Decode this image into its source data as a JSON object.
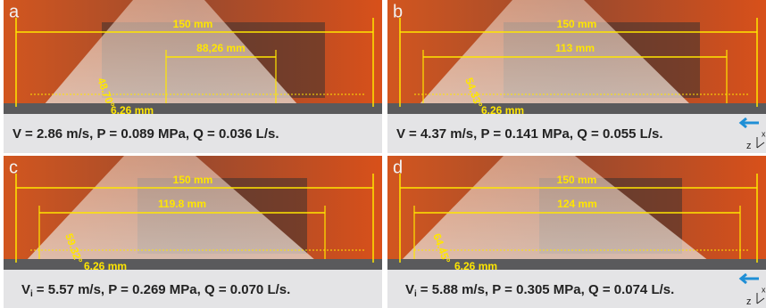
{
  "panels": [
    {
      "label": "a",
      "total_width": "150 mm",
      "inner_width": "88,26 mm",
      "angle": "48.70°",
      "height": "6.26 mm",
      "caption": {
        "v": "V",
        "rest": "= 2.86 m/s,   P = 0.089 MPa, Q = 0.036 L/s."
      }
    },
    {
      "label": "b",
      "total_width": "150 mm",
      "inner_width": "113 mm",
      "angle": "54.33°",
      "height": "6.26 mm",
      "caption": {
        "v": "V",
        "rest": "= 4.37 m/s,   P = 0.141 MPa, Q = 0.055 L/s."
      },
      "axes": [
        "z",
        "x"
      ]
    },
    {
      "label": "c",
      "total_width": "150 mm",
      "inner_width": "119.8 mm",
      "angle": "59.32°",
      "height": "6.26 mm",
      "caption": {
        "v": "V",
        "sub": "i",
        "rest": "= 5.57 m/s,   P = 0.269 MPa, Q = 0.070 L/s."
      }
    },
    {
      "label": "d",
      "total_width": "150 mm",
      "inner_width": "124 mm",
      "angle": "64.45°",
      "height": "6.26 mm",
      "caption": {
        "v": "V",
        "sub": "i",
        "rest": "= 5.88 m/s,   P = 0.305 MPa, Q = 0.074 L/s."
      },
      "axes": [
        "z",
        "x"
      ]
    }
  ]
}
